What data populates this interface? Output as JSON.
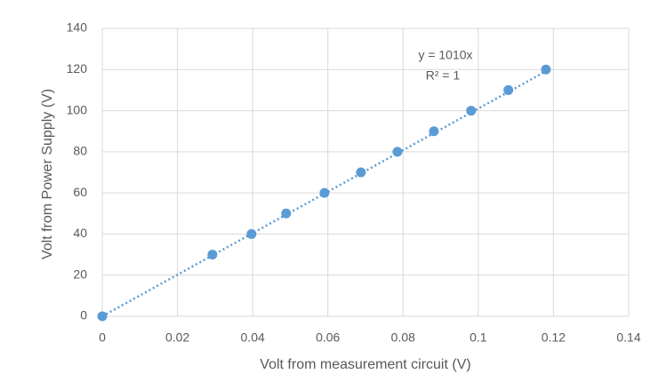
{
  "chart_data": {
    "type": "scatter",
    "x_label": "Volt from measurement circuit (V)",
    "y_label": "Volt from Power Supply (V)",
    "x": [
      0,
      0.0293,
      0.0397,
      0.0489,
      0.0591,
      0.0688,
      0.0785,
      0.0882,
      0.0981,
      0.108,
      0.118
    ],
    "values": [
      0,
      30,
      40,
      50,
      60,
      70,
      80,
      90,
      100,
      110,
      120
    ],
    "color": "#5b9bd5",
    "xlim": [
      0,
      0.14
    ],
    "xticks": [
      0,
      0.02,
      0.04,
      0.06,
      0.08,
      0.1,
      0.12,
      0.14
    ],
    "ylim": [
      0,
      140
    ],
    "yticks": [
      0,
      20,
      40,
      60,
      80,
      100,
      120,
      140
    ],
    "grid": true,
    "trendline": {
      "slope": 1010,
      "equation": "y = 1010x",
      "r_squared": "R² = 1"
    }
  }
}
